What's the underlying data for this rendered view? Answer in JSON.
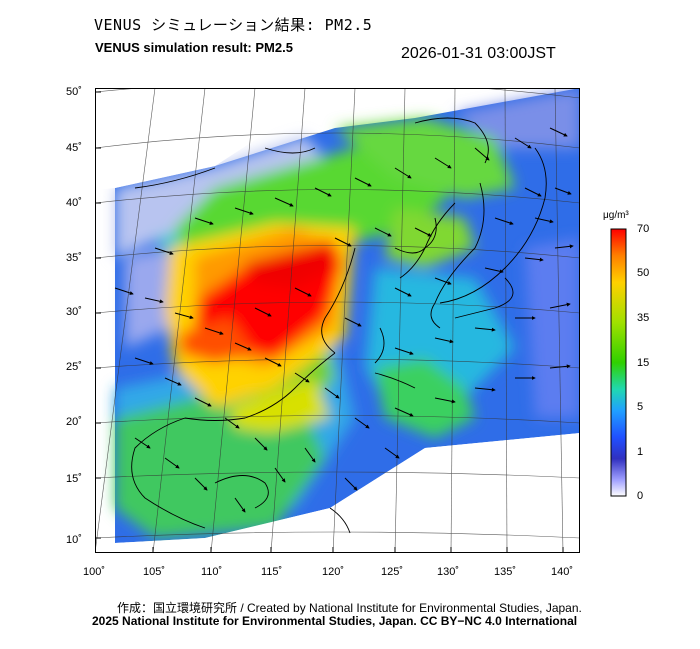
{
  "header": {
    "title_jp": "VENUS シミュレーション結果: PM2.5",
    "title_en": "VENUS simulation result: PM2.5",
    "timestamp": "2026-01-31 03:00JST"
  },
  "map": {
    "lat_ticks": [
      "50˚",
      "45˚",
      "40˚",
      "35˚",
      "30˚",
      "25˚",
      "20˚",
      "15˚",
      "10˚"
    ],
    "lon_ticks": [
      "100˚",
      "105˚",
      "110˚",
      "115˚",
      "120˚",
      "125˚",
      "130˚",
      "135˚",
      "140˚"
    ]
  },
  "colorbar": {
    "unit": "μg/m³",
    "ticks": [
      "70",
      "50",
      "35",
      "15",
      "5",
      "1",
      "0"
    ],
    "colors": [
      "#ff0000",
      "#ff8000",
      "#ffd000",
      "#a0e000",
      "#30d000",
      "#20d8b0",
      "#20a0ff",
      "#2050ff",
      "#3030c0",
      "#a0a0ff",
      "#ffffff"
    ]
  },
  "footer": {
    "credit": "作成：国立環境研究所 / Created by National Institute for Environmental Studies, Japan.",
    "copyright": "2025 National Institute for Environmental Studies, Japan. CC BY−NC 4.0 International"
  }
}
